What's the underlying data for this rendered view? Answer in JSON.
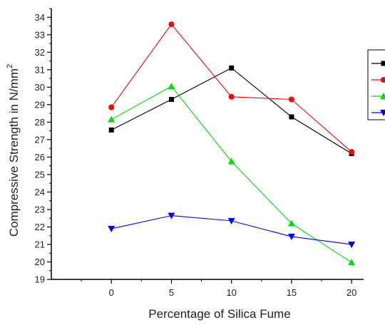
{
  "chart_data": {
    "type": "line",
    "title": "",
    "xlabel": "Percentage of Silica Fume",
    "ylabel": "Compressive Strength in N/mm",
    "ylabel_superscript": "2",
    "x": [
      0,
      5,
      10,
      15,
      20
    ],
    "xlim": [
      -5,
      21
    ],
    "ylim": [
      19,
      34.5
    ],
    "x_ticks": [
      0,
      5,
      10,
      15,
      20
    ],
    "y_ticks": [
      19,
      20,
      21,
      22,
      23,
      24,
      25,
      26,
      27,
      28,
      29,
      30,
      31,
      32,
      33,
      34
    ],
    "grid": false,
    "legend_placement": "right (cut off)",
    "series": [
      {
        "color": "#000000",
        "marker": "square",
        "values": [
          27.55,
          29.3,
          31.1,
          28.3,
          26.2
        ]
      },
      {
        "color": "#ff0000",
        "marker": "circle",
        "values": [
          28.85,
          33.6,
          29.45,
          29.3,
          26.3
        ]
      },
      {
        "color": "#00dd00",
        "marker": "triangle-up",
        "values": [
          28.15,
          30.05,
          25.75,
          22.2,
          19.97
        ]
      },
      {
        "color": "#0000ff",
        "marker": "triangle-down",
        "values": [
          21.9,
          22.65,
          22.35,
          21.45,
          21.0
        ]
      }
    ]
  }
}
